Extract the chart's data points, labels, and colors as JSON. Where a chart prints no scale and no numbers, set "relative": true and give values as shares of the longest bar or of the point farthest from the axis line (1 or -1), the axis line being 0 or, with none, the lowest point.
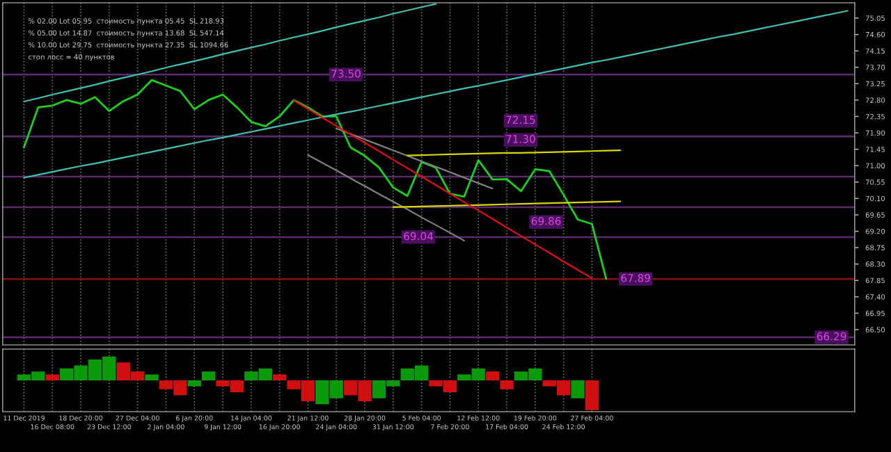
{
  "chart_data": [
    {
      "type": "line",
      "categories": [
        null,
        null,
        null,
        null,
        null,
        null,
        null,
        null,
        null,
        null,
        null,
        null,
        null,
        null,
        null,
        null,
        null,
        null,
        null,
        null,
        null,
        null,
        null,
        null,
        null,
        null,
        null,
        null,
        null,
        null,
        null,
        null,
        null,
        null,
        null,
        null,
        null,
        null,
        null,
        null,
        null,
        null,
        null,
        null,
        null,
        null,
        null,
        null,
        null,
        null,
        null,
        null,
        null,
        null,
        null,
        null,
        null,
        null,
        null
      ],
      "ylim": [
        66.08,
        75.47
      ],
      "yticks": [
        {
          "value": 66.5,
          "label": "66.50"
        },
        {
          "value": 66.95,
          "label": "66.95"
        },
        {
          "value": 67.4,
          "label": "67.40"
        },
        {
          "value": 67.85,
          "label": "67.85"
        },
        {
          "value": 68.3,
          "label": "68.30"
        },
        {
          "value": 68.75,
          "label": "68.75"
        },
        {
          "value": 69.2,
          "label": "69.20"
        },
        {
          "value": 69.65,
          "label": "69.65"
        },
        {
          "value": 70.1,
          "label": "70.10"
        },
        {
          "value": 70.55,
          "label": "70.55"
        },
        {
          "value": 71,
          "label": "71.00"
        },
        {
          "value": 71.45,
          "label": "71.45"
        },
        {
          "value": 71.9,
          "label": "71.90"
        },
        {
          "value": 72.35,
          "label": "72.35"
        },
        {
          "value": 72.8,
          "label": "72.80"
        },
        {
          "value": 73.25,
          "label": "73.25"
        },
        {
          "value": 73.7,
          "label": "73.70"
        },
        {
          "value": 74.15,
          "label": "74.15"
        },
        {
          "value": 74.6,
          "label": "74.60"
        },
        {
          "value": 75.05,
          "label": "75.05"
        }
      ],
      "tick_labels": "y",
      "grid": "x",
      "legend": false,
      "series": [
        {
          "color": "#19d219",
          "values": [
            71.5,
            72.6,
            72.65,
            72.8,
            72.7,
            72.88,
            72.5,
            72.77,
            72.95,
            73.35,
            73.2,
            73.05,
            72.55,
            72.8,
            72.95,
            72.6,
            72.2,
            72.08,
            72.35,
            72.8,
            72.6,
            72.35,
            72.35,
            71.5,
            71.27,
            70.95,
            70.4,
            70.17,
            71.1,
            70.95,
            70.23,
            70.15,
            71.15,
            70.62,
            70.63,
            70.3,
            70.9,
            70.85,
            70.2,
            69.52,
            69.4,
            67.89,
            null,
            null,
            null,
            null,
            null,
            null,
            null,
            null,
            null,
            null,
            null,
            null,
            null,
            null,
            null,
            null,
            null
          ]
        },
        {
          "color": "#40c0b0",
          "values": [
            72.76,
            72.85,
            72.95,
            73.04,
            73.13,
            73.22,
            73.32,
            73.41,
            73.5,
            73.59,
            73.69,
            73.78,
            73.87,
            73.96,
            74.06,
            74.15,
            74.24,
            74.33,
            74.43,
            74.52,
            74.61,
            74.7,
            74.8,
            74.89,
            74.98,
            75.07,
            75.17,
            75.26,
            75.35,
            75.44,
            null,
            null,
            null,
            null,
            null,
            null,
            null,
            null,
            null,
            null,
            null,
            null,
            null,
            null,
            null,
            null,
            null,
            null,
            null,
            null,
            null,
            null,
            null,
            null,
            null,
            null,
            null,
            null,
            null
          ]
        },
        {
          "color": "#40c0b0",
          "values": [
            70.67,
            70.75,
            70.83,
            70.91,
            70.99,
            71.06,
            71.14,
            71.22,
            71.3,
            71.38,
            71.46,
            71.54,
            71.62,
            71.7,
            71.77,
            71.85,
            71.93,
            72.01,
            72.09,
            72.17,
            72.25,
            72.33,
            72.41,
            72.48,
            72.56,
            72.64,
            72.72,
            72.8,
            72.88,
            72.96,
            73.04,
            73.12,
            73.19,
            73.27,
            73.35,
            73.43,
            73.51,
            73.59,
            73.67,
            73.75,
            73.83,
            73.9,
            73.98,
            74.06,
            74.14,
            74.22,
            74.3,
            74.38,
            74.46,
            74.54,
            74.61,
            74.69,
            74.77,
            74.85,
            74.93,
            75.01,
            75.09,
            75.17,
            75.25
          ]
        },
        {
          "color": "#808080",
          "values": [
            null,
            null,
            null,
            null,
            null,
            null,
            null,
            null,
            null,
            null,
            null,
            null,
            null,
            null,
            null,
            null,
            null,
            null,
            null,
            null,
            null,
            null,
            72.02,
            71.87,
            71.72,
            71.57,
            71.42,
            71.27,
            71.12,
            70.97,
            70.82,
            70.67,
            70.52,
            70.37,
            null,
            null,
            null,
            null,
            null,
            null,
            null,
            null,
            null,
            null,
            null,
            null,
            null,
            null,
            null,
            null,
            null,
            null,
            null,
            null,
            null,
            null,
            null,
            null,
            null
          ]
        },
        {
          "color": "#808080",
          "values": [
            null,
            null,
            null,
            null,
            null,
            null,
            null,
            null,
            null,
            null,
            null,
            null,
            null,
            null,
            null,
            null,
            null,
            null,
            null,
            null,
            71.29,
            71.08,
            70.87,
            70.65,
            70.44,
            70.22,
            70.01,
            69.8,
            69.58,
            69.37,
            69.16,
            68.94,
            null,
            null,
            null,
            null,
            null,
            null,
            null,
            null,
            null,
            null,
            null,
            null,
            null,
            null,
            null,
            null,
            null,
            null,
            null,
            null,
            null,
            null,
            null,
            null,
            null,
            null,
            null
          ]
        },
        {
          "color": "#d8d800",
          "values": [
            null,
            null,
            null,
            null,
            null,
            null,
            null,
            null,
            null,
            null,
            null,
            null,
            null,
            null,
            null,
            null,
            null,
            null,
            null,
            null,
            null,
            null,
            null,
            null,
            null,
            null,
            null,
            71.28,
            71.29,
            71.3,
            71.31,
            71.32,
            71.33,
            71.34,
            71.35,
            71.35,
            71.36,
            71.37,
            71.38,
            71.39,
            71.4,
            71.41,
            71.42,
            null,
            null,
            null,
            null,
            null,
            null,
            null,
            null,
            null,
            null,
            null,
            null,
            null,
            null,
            null,
            null
          ]
        },
        {
          "color": "#d8d800",
          "values": [
            null,
            null,
            null,
            null,
            null,
            null,
            null,
            null,
            null,
            null,
            null,
            null,
            null,
            null,
            null,
            null,
            null,
            null,
            null,
            null,
            null,
            null,
            null,
            null,
            null,
            null,
            69.86,
            69.87,
            69.88,
            69.89,
            69.9,
            69.91,
            69.92,
            69.93,
            69.94,
            69.95,
            69.96,
            69.97,
            69.98,
            69.99,
            70.0,
            70.01,
            70.02,
            null,
            null,
            null,
            null,
            null,
            null,
            null,
            null,
            null,
            null,
            null,
            null,
            null,
            null,
            null,
            null
          ]
        },
        {
          "color": "#e01010",
          "values": [
            null,
            null,
            null,
            null,
            null,
            null,
            null,
            null,
            null,
            null,
            null,
            null,
            null,
            null,
            null,
            null,
            null,
            null,
            null,
            72.79,
            72.56,
            72.32,
            72.09,
            71.86,
            71.63,
            71.4,
            71.16,
            70.93,
            70.7,
            70.47,
            70.23,
            70.0,
            69.77,
            69.54,
            69.3,
            69.07,
            68.84,
            68.61,
            68.37,
            68.14,
            67.91,
            null,
            null,
            null,
            null,
            null,
            null,
            null,
            null,
            null,
            null,
            null,
            null,
            null,
            null,
            null,
            null,
            null,
            null
          ]
        }
      ],
      "ref_lines": [
        {
          "axis": "y",
          "value": 73.5,
          "label": null,
          "color": "#5e2a70"
        },
        {
          "axis": "y",
          "value": 71.8,
          "label": null,
          "color": "#5e2a70"
        },
        {
          "axis": "y",
          "value": 70.7,
          "label": null,
          "color": "#5e2a70"
        },
        {
          "axis": "y",
          "value": 69.86,
          "label": null,
          "color": "#5e2a70"
        },
        {
          "axis": "y",
          "value": 69.04,
          "label": null,
          "color": "#5e2a70"
        },
        {
          "axis": "y",
          "value": 67.89,
          "label": null,
          "color": "#8a1010"
        },
        {
          "axis": "y",
          "value": 66.29,
          "label": null,
          "color": "#5e2a70"
        }
      ],
      "annotations": [
        {
          "text": "73.50",
          "y": 73.5
        },
        "72.15",
        {
          "text": "71.30",
          "y": 71.3
        },
        {
          "text": "69.86",
          "y": 69.86
        },
        {
          "text": "69.04",
          "y": 69.04
        },
        {
          "text": "67.89",
          "y": 67.89
        },
        {
          "text": "66.29",
          "y": 66.29
        },
        "% 02.00 Lot 05.95  стоимость пункта 05.45  SL 218.93",
        "% 05.00 Lot 14.87  стоимость пункта 13.68  SL 547.14",
        "% 10.00 Lot 29.75  стоимость пункта 27.35  SL 1094.66",
        "стоп лосс = 40 пунктов"
      ]
    },
    {
      "type": "bar",
      "relative": true,
      "tick_labels": "x",
      "grid": "x",
      "legend": false,
      "categories": [
        "11 Dec 2019",
        null,
        "16 Dec 08:00",
        null,
        "18 Dec 20:00",
        null,
        "23 Dec 12:00",
        null,
        "27 Dec 04:00",
        null,
        "2 Jan 04:00",
        null,
        "6 Jan 20:00",
        null,
        "9 Jan 12:00",
        null,
        "14 Jan 04:00",
        null,
        "16 Jan 20:00",
        null,
        "21 Jan 12:00",
        null,
        "24 Jan 04:00",
        null,
        "28 Jan 20:00",
        null,
        "31 Jan 12:00",
        null,
        "5 Feb 04:00",
        null,
        "7 Feb 20:00",
        null,
        "12 Feb 12:00",
        null,
        "17 Feb 04:00",
        null,
        "19 Feb 20:00",
        null,
        "24 Feb 12:00",
        null,
        "27 Feb 04:00",
        null,
        null,
        null,
        null,
        null,
        null,
        null,
        null,
        null,
        null,
        null,
        null,
        null,
        null,
        null,
        null,
        null,
        null
      ],
      "values": [
        0.2,
        0.3,
        0.2,
        0.4,
        0.5,
        0.7,
        0.8,
        0.6,
        0.3,
        0.2,
        -0.3,
        -0.5,
        -0.2,
        0.3,
        -0.2,
        -0.4,
        0.3,
        0.4,
        0.2,
        -0.3,
        -0.7,
        -0.8,
        -0.6,
        -0.5,
        -0.7,
        -0.6,
        -0.2,
        0.4,
        0.5,
        -0.2,
        -0.4,
        0.2,
        0.4,
        0.3,
        -0.3,
        0.3,
        0.4,
        -0.2,
        -0.5,
        -0.6,
        -1,
        null,
        null,
        null,
        null,
        null,
        null,
        null,
        null,
        null,
        null,
        null,
        null,
        null,
        null,
        null,
        null,
        null,
        null
      ],
      "colors": [
        "#0a9a0a",
        "#0a9a0a",
        "#d01010",
        "#0a9a0a",
        "#0a9a0a",
        "#0a9a0a",
        "#0a9a0a",
        "#d01010",
        "#d01010",
        "#0a9a0a",
        "#d01010",
        "#d01010",
        "#0a9a0a",
        "#0a9a0a",
        "#d01010",
        "#d01010",
        "#0a9a0a",
        "#0a9a0a",
        "#d01010",
        "#d01010",
        "#d01010",
        "#0a9a0a",
        "#0a9a0a",
        "#d01010",
        "#d01010",
        "#0a9a0a",
        "#0a9a0a",
        "#0a9a0a",
        "#0a9a0a",
        "#d01010",
        "#d01010",
        "#0a9a0a",
        "#0a9a0a",
        "#d01010",
        "#d01010",
        "#0a9a0a",
        "#0a9a0a",
        "#d01010",
        "#d01010",
        "#0a9a0a",
        "#d01010",
        "#0a9a0a",
        "#0a9a0a",
        "#0a9a0a",
        "#0a9a0a",
        "#0a9a0a",
        "#0a9a0a",
        "#0a9a0a",
        "#0a9a0a",
        "#0a9a0a",
        "#0a9a0a",
        "#0a9a0a",
        "#0a9a0a",
        "#0a9a0a",
        "#0a9a0a",
        "#0a9a0a",
        "#0a9a0a",
        "#0a9a0a",
        "#0a9a0a"
      ]
    }
  ]
}
